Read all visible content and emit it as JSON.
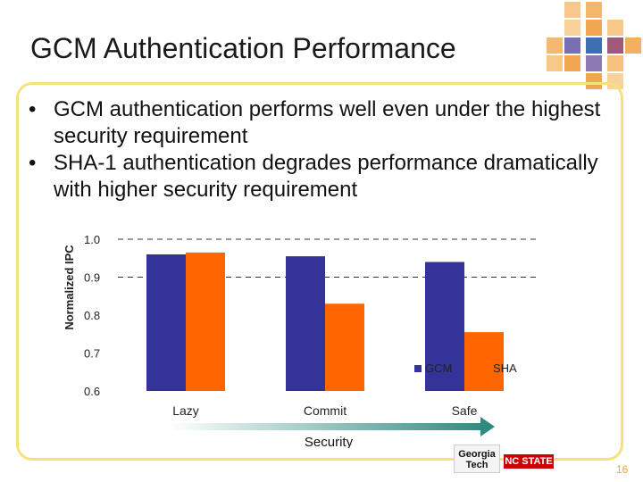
{
  "slide": {
    "title": "GCM Authentication Performance",
    "bullets": [
      "GCM authentication performs well even under the highest security requirement",
      "SHA-1 authentication degrades performance dramatically with higher security requirement"
    ],
    "page_number": "16",
    "logos": {
      "left": "Georgia Tech",
      "right": "NC STATE"
    }
  },
  "chart_data": {
    "type": "bar",
    "categories": [
      "Lazy",
      "Commit",
      "Safe"
    ],
    "series": [
      {
        "name": "GCM",
        "values": [
          0.96,
          0.955,
          0.94
        ],
        "color": "#333399"
      },
      {
        "name": "SHA",
        "values": [
          0.965,
          0.83,
          0.755
        ],
        "color": "#ff6600"
      }
    ],
    "ylabel": "Normalized IPC",
    "xlabel": "Security",
    "ylim": [
      0.6,
      1.0
    ],
    "yticks": [
      "1.0",
      "0.9",
      "0.8",
      "0.7",
      "0.6"
    ],
    "grid": "dashed at 1.0 and 0.9",
    "legend": "bottom-right"
  }
}
